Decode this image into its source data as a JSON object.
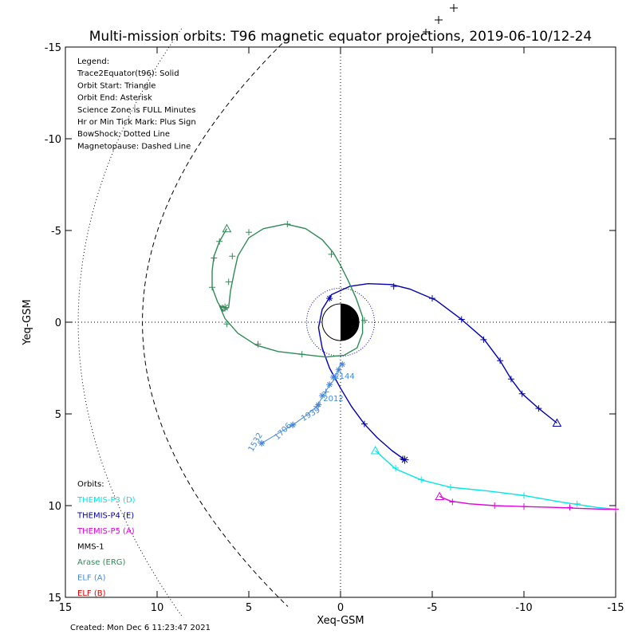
{
  "chart_data": {
    "type": "line",
    "title": "Multi-mission orbits: T96 magnetic equator projections, 2019-06-10/12-24",
    "xlabel": "Xeq-GSM",
    "ylabel": "Yeq-GSM",
    "xlim": [
      15,
      -15
    ],
    "ylim": [
      15,
      -15
    ],
    "xticks": [
      15,
      10,
      5,
      0,
      -5,
      -10,
      -15
    ],
    "yticks": [
      -15,
      -10,
      -5,
      0,
      5,
      10,
      15
    ],
    "created": "Created: Mon Dec  6 11:23:47 2021",
    "legend_lines": [
      "Legend:",
      "Trace2Equator(t96): Solid",
      "Orbit Start: Triangle",
      "Orbit End: Asterisk",
      "Science Zone is FULL Minutes",
      "Hr or Min Tick Mark: Plus Sign",
      "BowShock: Dotted Line",
      "Magnetopause: Dashed Line"
    ],
    "orbits_heading": "Orbits:",
    "series": [
      {
        "name": "THEMIS-P3 (D)",
        "color": "#00e6e6",
        "points": [
          [
            -1.9,
            7.0
          ],
          [
            -3.0,
            8.0
          ],
          [
            -4.4,
            8.6
          ],
          [
            -6.0,
            9.0
          ],
          [
            -8.0,
            9.2
          ],
          [
            -10.0,
            9.45
          ],
          [
            -12.0,
            9.8
          ],
          [
            -14.0,
            10.1
          ],
          [
            -15.0,
            10.2
          ]
        ],
        "ticks": [
          [
            -3.0,
            7.95
          ],
          [
            -4.4,
            8.58
          ],
          [
            -6.0,
            9.0
          ],
          [
            -10.0,
            9.45
          ],
          [
            -12.9,
            9.9
          ]
        ],
        "start": [
          -1.9,
          7.0
        ],
        "end": null
      },
      {
        "name": "THEMIS-P4 (E)",
        "color": "#0000b3",
        "points": [
          [
            -11.8,
            5.5
          ],
          [
            -10.8,
            4.7
          ],
          [
            -9.9,
            3.9
          ],
          [
            -9.3,
            3.1
          ],
          [
            -8.7,
            2.1
          ],
          [
            -7.8,
            0.9
          ],
          [
            -6.6,
            -0.15
          ],
          [
            -5.2,
            -1.2
          ],
          [
            -3.8,
            -1.8
          ],
          [
            -2.8,
            -2.05
          ],
          [
            -1.5,
            -2.1
          ],
          [
            -0.5,
            -1.95
          ],
          [
            0.5,
            -1.5
          ],
          [
            1.0,
            -0.7
          ],
          [
            1.2,
            0.3
          ],
          [
            1.0,
            1.4
          ],
          [
            0.6,
            2.5
          ],
          [
            0.0,
            3.6
          ],
          [
            -0.6,
            4.6
          ],
          [
            -1.3,
            5.55
          ],
          [
            -2.0,
            6.3
          ],
          [
            -2.8,
            7.0
          ],
          [
            -3.5,
            7.5
          ]
        ],
        "ticks": [
          [
            -10.8,
            4.7
          ],
          [
            -9.9,
            3.9
          ],
          [
            -9.3,
            3.1
          ],
          [
            -8.7,
            2.1
          ],
          [
            -7.8,
            0.95
          ],
          [
            -6.6,
            -0.15
          ],
          [
            -5.0,
            -1.3
          ],
          [
            -2.9,
            -1.95
          ],
          [
            -1.3,
            5.55
          ],
          [
            -3.4,
            7.45
          ]
        ],
        "start": [
          -11.8,
          5.5
        ],
        "end": [
          -3.5,
          7.5
        ],
        "extra_end": [
          0.6,
          -1.3
        ]
      },
      {
        "name": "THEMIS-P5 (A)",
        "color": "#e000e0",
        "points": [
          [
            -5.4,
            9.5
          ],
          [
            -6.0,
            9.75
          ],
          [
            -7.0,
            9.9
          ],
          [
            -8.4,
            10.0
          ],
          [
            -10.0,
            10.05
          ],
          [
            -11.8,
            10.1
          ],
          [
            -13.0,
            10.15
          ],
          [
            -14.4,
            10.2
          ],
          [
            -15.0,
            10.2
          ]
        ],
        "ticks": [
          [
            -6.1,
            9.8
          ],
          [
            -8.4,
            10.0
          ],
          [
            -10.0,
            10.05
          ],
          [
            -12.5,
            10.1
          ],
          [
            -15.0,
            10.2
          ]
        ],
        "start": [
          -5.4,
          9.5
        ],
        "end": null
      },
      {
        "name": "MMS-1",
        "color": "#000000",
        "points": [],
        "ticks": [],
        "start": null,
        "end": null
      },
      {
        "name": "Arase (ERG)",
        "color": "#2e8b57",
        "points": [
          [
            6.2,
            -5.1
          ],
          [
            6.6,
            -4.4
          ],
          [
            6.9,
            -3.6
          ],
          [
            7.0,
            -2.8
          ],
          [
            7.0,
            -1.9
          ],
          [
            6.7,
            -1.1
          ],
          [
            6.4,
            -0.6
          ],
          [
            6.1,
            -0.8
          ],
          [
            6.0,
            -1.7
          ],
          [
            5.8,
            -2.7
          ],
          [
            5.6,
            -3.6
          ],
          [
            5.0,
            -4.6
          ],
          [
            4.2,
            -5.1
          ],
          [
            3.0,
            -5.35
          ],
          [
            1.9,
            -5.1
          ],
          [
            1.0,
            -4.5
          ],
          [
            0.4,
            -3.8
          ],
          [
            0.0,
            -3.1
          ],
          [
            -0.4,
            -2.3
          ],
          [
            -0.85,
            -1.3
          ],
          [
            -1.2,
            -0.3
          ],
          [
            -1.2,
            0.6
          ],
          [
            -0.9,
            1.4
          ],
          [
            -0.2,
            1.8
          ],
          [
            0.8,
            1.9
          ],
          [
            2.1,
            1.75
          ],
          [
            3.4,
            1.6
          ],
          [
            4.6,
            1.25
          ],
          [
            5.6,
            0.6
          ],
          [
            6.3,
            -0.2
          ],
          [
            6.6,
            -0.9
          ],
          [
            6.3,
            -0.8
          ]
        ],
        "ticks": [
          [
            6.6,
            -4.4
          ],
          [
            6.9,
            -3.5
          ],
          [
            7.0,
            -1.9
          ],
          [
            6.1,
            -2.2
          ],
          [
            5.9,
            -3.6
          ],
          [
            5.0,
            -4.9
          ],
          [
            2.9,
            -5.35
          ],
          [
            0.5,
            -3.7
          ],
          [
            -1.3,
            -0.1
          ],
          [
            2.1,
            1.75
          ],
          [
            4.5,
            1.2
          ],
          [
            6.2,
            0.1
          ]
        ],
        "start": [
          6.2,
          -5.1
        ],
        "end": [
          6.3,
          -0.8
        ]
      },
      {
        "name": "ELF (A)",
        "color": "#4488dd",
        "points": [
          [
            4.3,
            6.6
          ],
          [
            3.3,
            6.0
          ],
          [
            2.6,
            5.6
          ],
          [
            1.9,
            5.1
          ],
          [
            1.3,
            4.6
          ],
          [
            1.0,
            4.1
          ],
          [
            0.7,
            3.6
          ],
          [
            0.4,
            3.2
          ],
          [
            0.2,
            2.8
          ],
          [
            0.05,
            2.4
          ],
          [
            -0.1,
            2.2
          ]
        ],
        "ticks": [
          [
            4.3,
            6.6
          ],
          [
            2.6,
            5.6
          ],
          [
            1.3,
            4.6
          ],
          [
            0.8,
            3.8
          ],
          [
            0.3,
            3.0
          ]
        ],
        "asterisks": [
          [
            4.3,
            6.6
          ],
          [
            2.6,
            5.6
          ],
          [
            1.2,
            4.5
          ],
          [
            1.0,
            4.0
          ],
          [
            0.6,
            3.4
          ],
          [
            0.4,
            3.0
          ],
          [
            0.1,
            2.6
          ],
          [
            -0.1,
            2.3
          ]
        ],
        "start": null,
        "end": null,
        "time_labels": [
          "1532",
          "1706",
          "1939",
          "2012",
          "2144"
        ]
      },
      {
        "name": "ELF (B)",
        "color": "#dd0000",
        "points": [],
        "ticks": [],
        "start": null,
        "end": null
      }
    ]
  }
}
